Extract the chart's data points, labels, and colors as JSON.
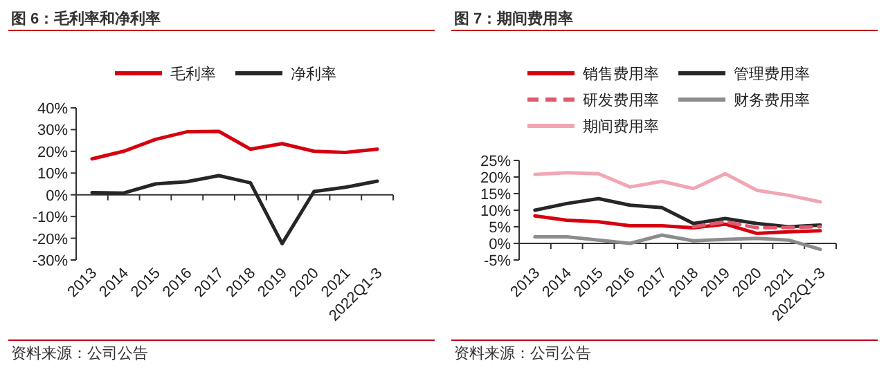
{
  "chart_data": [
    {
      "type": "line",
      "title": "图 6：毛利率和净利率",
      "legend": "top",
      "categories": [
        "2013",
        "2014",
        "2015",
        "2016",
        "2017",
        "2018",
        "2019",
        "2020",
        "2021",
        "2022Q1-3"
      ],
      "series": [
        {
          "name": "毛利率",
          "color": "#d7000f",
          "values": [
            16.5,
            20,
            25.5,
            29,
            29.2,
            21,
            23.5,
            20,
            19.5,
            21
          ]
        },
        {
          "name": "净利率",
          "color": "#262626",
          "values": [
            1,
            0.8,
            5,
            6,
            8.8,
            5.5,
            -22.5,
            1.5,
            3.5,
            6.3
          ]
        }
      ],
      "ylim": [
        -30,
        40
      ],
      "yticks": [
        {
          "value": -30,
          "label": "-30%"
        },
        {
          "value": -20,
          "label": "-20%"
        },
        {
          "value": -10,
          "label": "-10%"
        },
        {
          "value": 0,
          "label": "0%"
        },
        {
          "value": 10,
          "label": "10%"
        },
        {
          "value": 20,
          "label": "20%"
        },
        {
          "value": 30,
          "label": "30%"
        },
        {
          "value": 40,
          "label": "40%"
        }
      ],
      "annotations": [
        "资料来源：公司公告"
      ]
    },
    {
      "type": "line",
      "title": "图 7：期间费用率",
      "legend": "top",
      "categories": [
        "2013",
        "2014",
        "2015",
        "2016",
        "2017",
        "2018",
        "2019",
        "2020",
        "2021",
        "2022Q1-3"
      ],
      "series": [
        {
          "name": "销售费用率",
          "color": "#d7000f",
          "values": [
            8.3,
            7,
            6.5,
            5.3,
            5.3,
            4.7,
            5.8,
            3,
            3.5,
            3.8
          ]
        },
        {
          "name": "管理费用率",
          "color": "#262626",
          "values": [
            10,
            12,
            13.5,
            11.5,
            10.8,
            6,
            7.5,
            6,
            5,
            5.5
          ]
        },
        {
          "name": "研发费用率",
          "color": "#e05a6e",
          "line_style": "dashed",
          "values": [
            null,
            null,
            null,
            null,
            null,
            5,
            6.5,
            4.7,
            4.8,
            5
          ]
        },
        {
          "name": "财务费用率",
          "color": "#8c8c8c",
          "values": [
            2,
            2,
            1,
            0,
            2.5,
            0.8,
            1.2,
            1.5,
            1,
            -1.8
          ]
        },
        {
          "name": "期间费用率",
          "color": "#f2a6b4",
          "values": [
            20.8,
            21.3,
            21,
            17,
            18.7,
            16.5,
            21,
            16,
            14.5,
            12.5
          ]
        }
      ],
      "ylim": [
        -5,
        25
      ],
      "yticks": [
        {
          "value": -5,
          "label": "-5%"
        },
        {
          "value": 0,
          "label": "0%"
        },
        {
          "value": 5,
          "label": "5%"
        },
        {
          "value": 10,
          "label": "10%"
        },
        {
          "value": 15,
          "label": "15%"
        },
        {
          "value": 20,
          "label": "20%"
        },
        {
          "value": 25,
          "label": "25%"
        }
      ],
      "annotations": [
        "资料来源：公司公告"
      ]
    }
  ]
}
